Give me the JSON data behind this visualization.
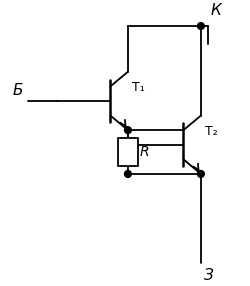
{
  "bg_color": "#ffffff",
  "line_color": "#000000",
  "dot_color": "#000000",
  "label_B": "Б",
  "label_K": "К",
  "label_E": "З",
  "label_T1": "T₁",
  "label_T2": "T₂",
  "label_R": "R"
}
